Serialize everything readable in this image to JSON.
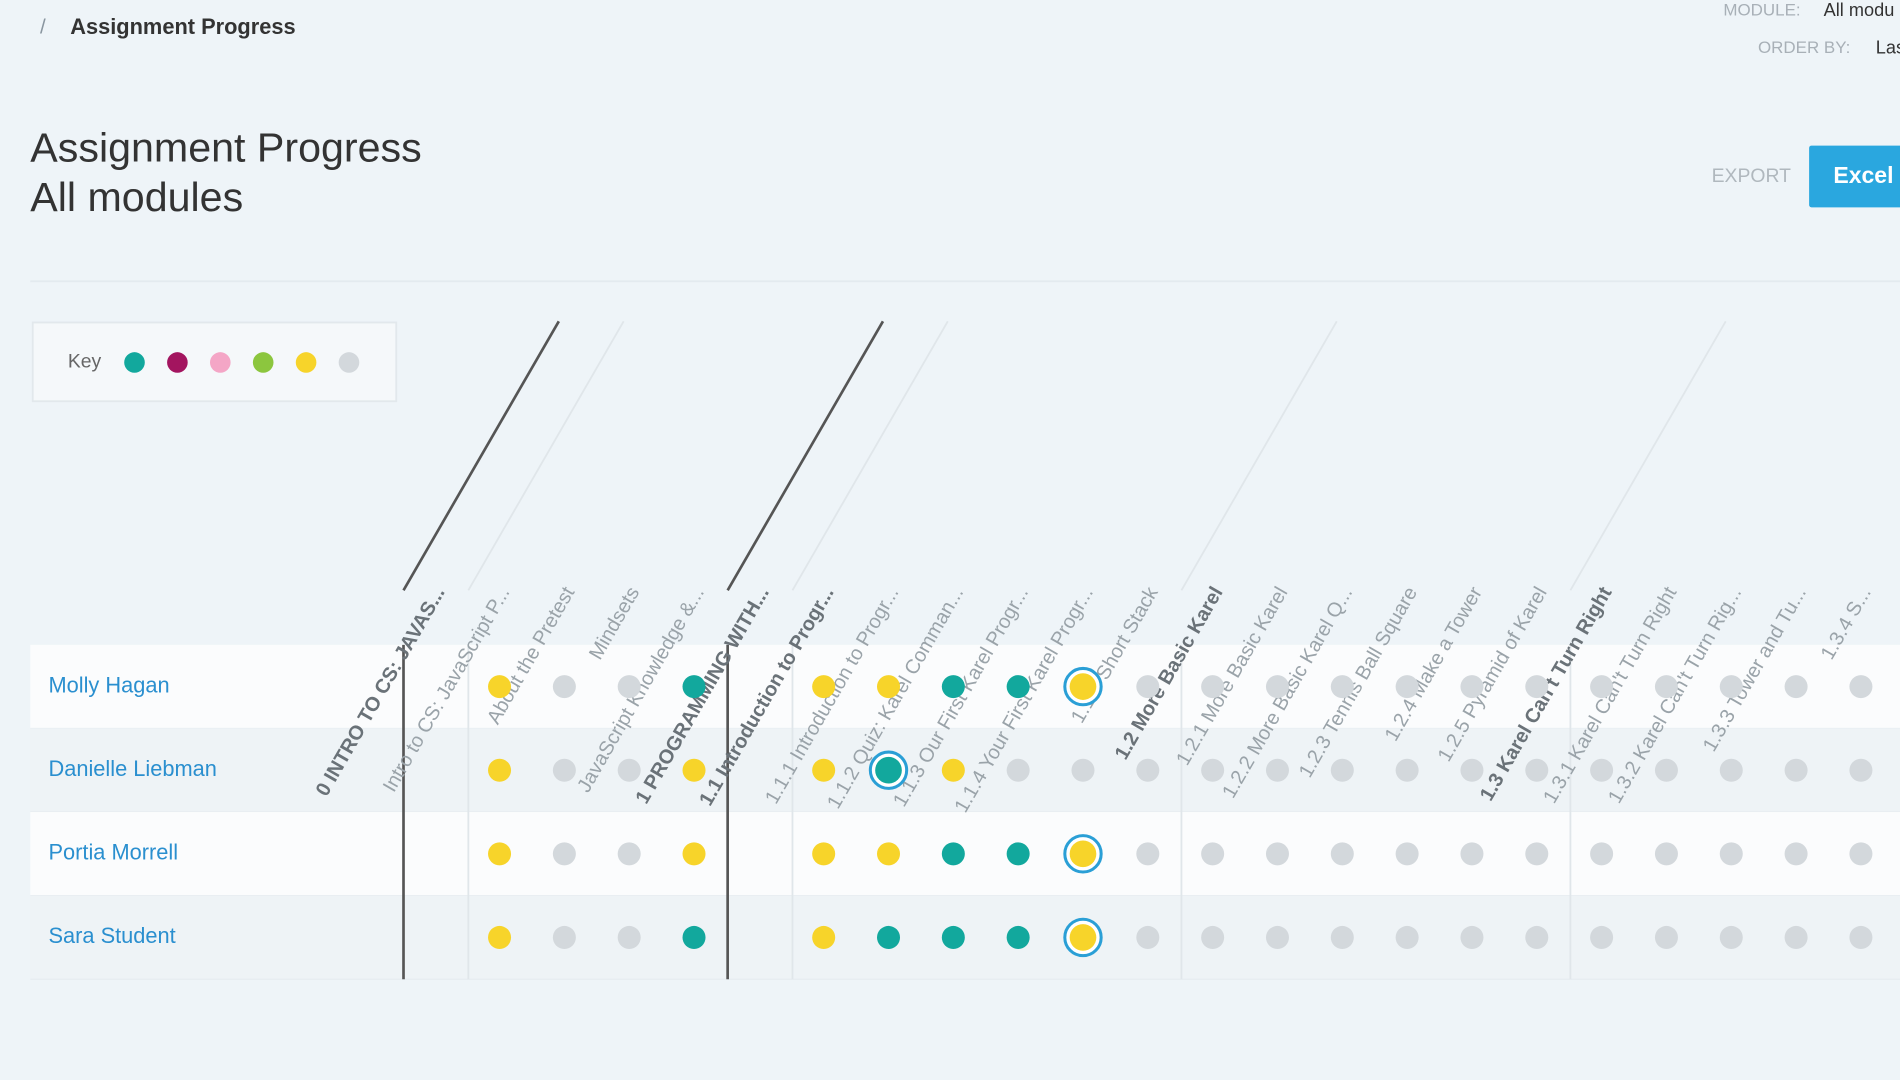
{
  "breadcrumb": {
    "separator": "/",
    "current": "Assignment Progress"
  },
  "filters": [
    {
      "label": "MODULE:",
      "value": "All modu"
    },
    {
      "label": "ORDER BY:",
      "value": "Las"
    }
  ],
  "header": {
    "title": "Assignment Progress",
    "subtitle": "All modules"
  },
  "export": {
    "label": "EXPORT",
    "button": "Excel"
  },
  "key": {
    "label": "Key",
    "colors": [
      "#12a89d",
      "#a3155f",
      "#f4a6c6",
      "#8cc63e",
      "#f7d42a",
      "#d3d8dc"
    ]
  },
  "columns": [
    {
      "label": "0 INTRO TO CS: JAVAS...",
      "style": "module"
    },
    {
      "label": "Intro to CS: JavaScript P...",
      "style": "item"
    },
    {
      "label": "About the Pretest",
      "style": "item"
    },
    {
      "label": "Mindsets",
      "style": "item"
    },
    {
      "label": "JavaScript Knowledge &...",
      "style": "item"
    },
    {
      "label": "1 PROGRAMMING WITH...",
      "style": "module"
    },
    {
      "label": "1.1 Introduction to Progr...",
      "style": "lesson"
    },
    {
      "label": "1.1.1 Introduction to Progr...",
      "style": "item"
    },
    {
      "label": "1.1.2 Quiz: Karel Comman...",
      "style": "item"
    },
    {
      "label": "1.1.3 Our First Karel Progr...",
      "style": "item"
    },
    {
      "label": "1.1.4 Your First Karel Progr...",
      "style": "item"
    },
    {
      "label": "1.1.5 Short Stack",
      "style": "item"
    },
    {
      "label": "1.2 More Basic Karel",
      "style": "lesson"
    },
    {
      "label": "1.2.1 More Basic Karel",
      "style": "item"
    },
    {
      "label": "1.2.2 More Basic Karel Q...",
      "style": "item"
    },
    {
      "label": "1.2.3 Tennis Ball Square",
      "style": "item"
    },
    {
      "label": "1.2.4 Make a Tower",
      "style": "item"
    },
    {
      "label": "1.2.5 Pyramid of Karel",
      "style": "item"
    },
    {
      "label": "1.3 Karel Can't Turn Right",
      "style": "lesson"
    },
    {
      "label": "1.3.1 Karel Can't Turn Right",
      "style": "item"
    },
    {
      "label": "1.3.2 Karel Can't Turn Rig...",
      "style": "item"
    },
    {
      "label": "1.3.3 Tower and Tu...",
      "style": "item"
    },
    {
      "label": "1.3.4 S...",
      "style": "item"
    }
  ],
  "rows": [
    {
      "name": "Molly Hagan",
      "cells": [
        null,
        "#f7d42a",
        "#d3d8dc",
        "#d3d8dc",
        "#12a89d",
        null,
        "#f7d42a",
        "#f7d42a",
        "#12a89d",
        "#12a89d",
        {
          "color": "#f7d42a",
          "ring": "#2a9fd6"
        },
        "#d3d8dc",
        "#d3d8dc",
        "#d3d8dc",
        "#d3d8dc",
        "#d3d8dc",
        "#d3d8dc",
        "#d3d8dc",
        "#d3d8dc",
        "#d3d8dc",
        "#d3d8dc",
        "#d3d8dc",
        "#d3d8dc"
      ]
    },
    {
      "name": "Danielle Liebman",
      "cells": [
        null,
        "#f7d42a",
        "#d3d8dc",
        "#d3d8dc",
        "#f7d42a",
        null,
        "#f7d42a",
        {
          "color": "#12a89d",
          "ring": "#2a9fd6"
        },
        "#f7d42a",
        "#d3d8dc",
        "#d3d8dc",
        "#d3d8dc",
        "#d3d8dc",
        "#d3d8dc",
        "#d3d8dc",
        "#d3d8dc",
        "#d3d8dc",
        "#d3d8dc",
        "#d3d8dc",
        "#d3d8dc",
        "#d3d8dc",
        "#d3d8dc",
        "#d3d8dc"
      ]
    },
    {
      "name": "Portia Morrell",
      "cells": [
        null,
        "#f7d42a",
        "#d3d8dc",
        "#d3d8dc",
        "#f7d42a",
        null,
        "#f7d42a",
        "#f7d42a",
        "#12a89d",
        "#12a89d",
        {
          "color": "#f7d42a",
          "ring": "#2a9fd6"
        },
        "#d3d8dc",
        "#d3d8dc",
        "#d3d8dc",
        "#d3d8dc",
        "#d3d8dc",
        "#d3d8dc",
        "#d3d8dc",
        "#d3d8dc",
        "#d3d8dc",
        "#d3d8dc",
        "#d3d8dc",
        "#d3d8dc"
      ]
    },
    {
      "name": "Sara Student",
      "cells": [
        null,
        "#f7d42a",
        "#d3d8dc",
        "#d3d8dc",
        "#12a89d",
        null,
        "#f7d42a",
        "#12a89d",
        "#12a89d",
        "#12a89d",
        {
          "color": "#f7d42a",
          "ring": "#2a9fd6"
        },
        "#d3d8dc",
        "#d3d8dc",
        "#d3d8dc",
        "#d3d8dc",
        "#d3d8dc",
        "#d3d8dc",
        "#d3d8dc",
        "#d3d8dc",
        "#d3d8dc",
        "#d3d8dc",
        "#d3d8dc",
        "#d3d8dc"
      ]
    }
  ]
}
